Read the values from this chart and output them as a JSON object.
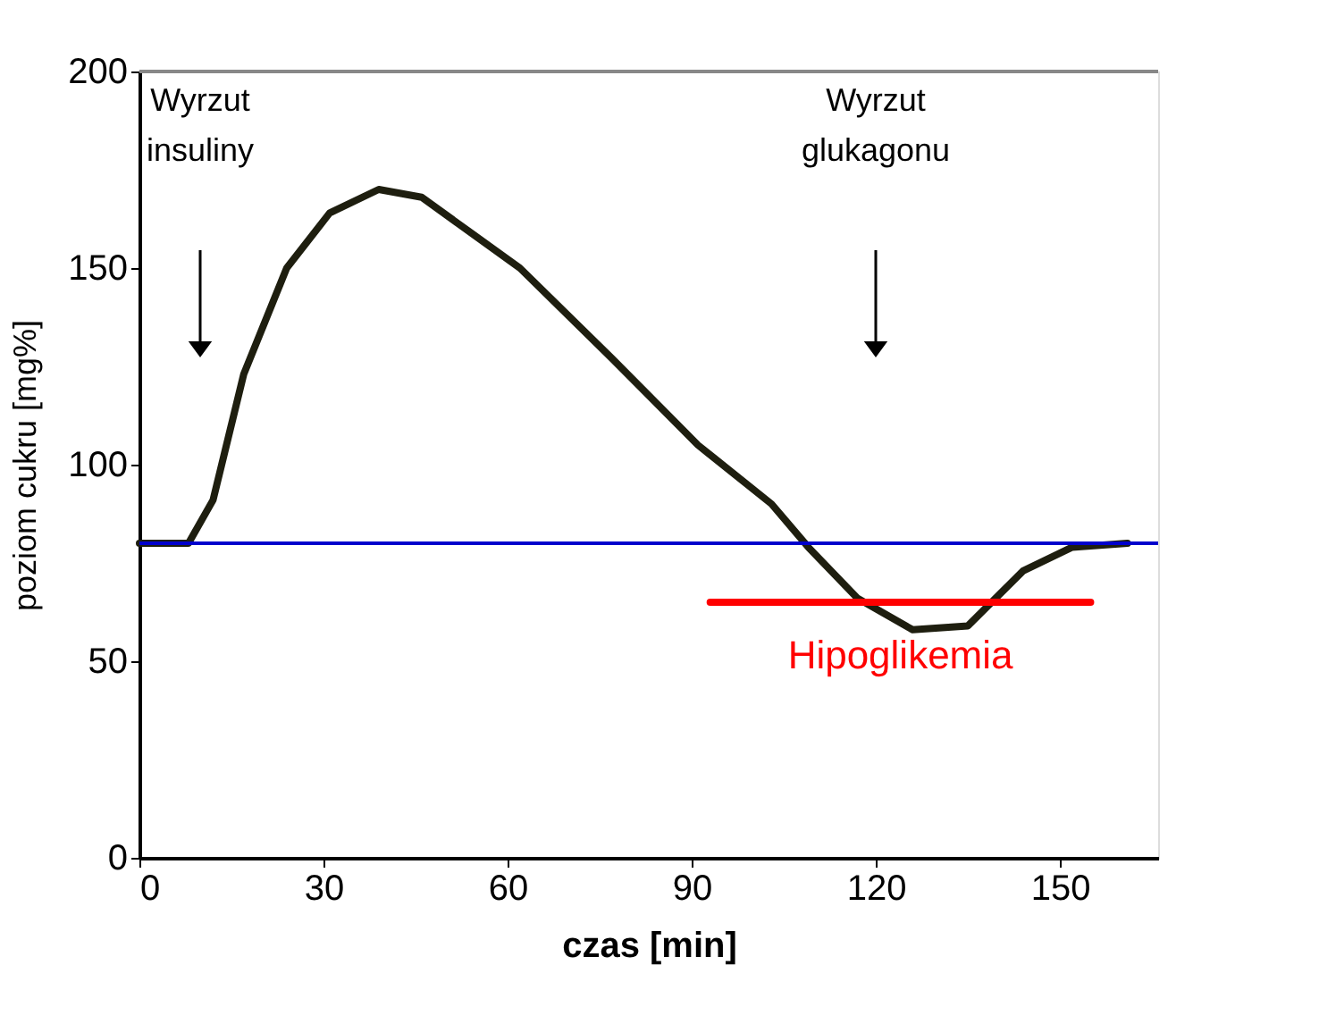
{
  "chart_data": {
    "type": "line",
    "xlabel": "czas [min]",
    "ylabel": "poziom cukru [mg%]",
    "xlim": [
      0,
      166
    ],
    "ylim": [
      0,
      200
    ],
    "xticks": [
      0,
      30,
      60,
      90,
      120,
      150
    ],
    "yticks": [
      0,
      50,
      100,
      150,
      200
    ],
    "grid": false,
    "series": [
      {
        "color": "#1e1e0f",
        "x": [
          0,
          8,
          12,
          17,
          24,
          31,
          39,
          46,
          62,
          77,
          91,
          103,
          109,
          117,
          126,
          135,
          144,
          152,
          161
        ],
        "values": [
          80,
          80,
          91,
          123,
          150,
          164,
          170,
          168,
          150,
          127,
          105,
          90,
          79,
          66,
          58,
          59,
          73,
          79,
          80
        ]
      },
      {
        "name": "Hipoglikemia",
        "color": "#ff0000",
        "x": [
          93,
          155
        ],
        "values": [
          65,
          65
        ]
      }
    ],
    "ref_lines": [
      {
        "axis": "y",
        "value": 80,
        "color": "#0000cc"
      }
    ],
    "annotations": [
      "Wyrzut insuliny",
      "Wyrzut glukagonu"
    ]
  }
}
